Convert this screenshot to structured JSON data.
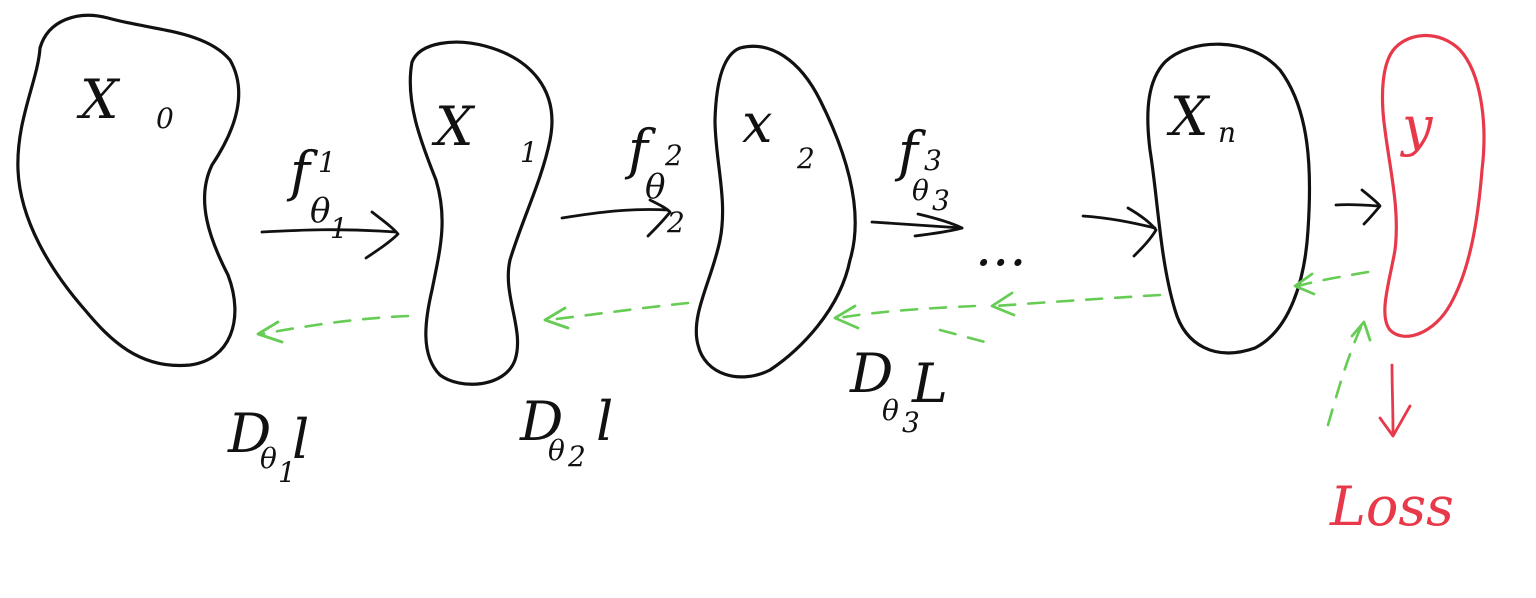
{
  "colors": {
    "ink": "#111111",
    "target": "#e8394a",
    "gradient": "#66cc55"
  },
  "nodes": [
    {
      "id": "x0",
      "main": "X",
      "sub": "0"
    },
    {
      "id": "x1",
      "main": "X",
      "sub": "1"
    },
    {
      "id": "x2",
      "main": "x",
      "sub": "2"
    },
    {
      "id": "xn",
      "main": "X",
      "sub": "n"
    },
    {
      "id": "y",
      "main": "y",
      "sub": ""
    }
  ],
  "forward": [
    {
      "f": "f",
      "f_sub": "1",
      "theta": "θ",
      "theta_sub": "1"
    },
    {
      "f": "f",
      "f_sub": "2",
      "theta": "θ",
      "theta_sub": "2"
    },
    {
      "f": "f",
      "f_sub": "3",
      "theta": "θ",
      "theta_sub": "3"
    }
  ],
  "ellipsis": "...",
  "gradients": [
    {
      "nabla": "D",
      "theta": "θ",
      "theta_sub": "1",
      "l": "l"
    },
    {
      "nabla": "D",
      "theta": "θ",
      "theta_sub": "2",
      "l": "l"
    },
    {
      "nabla": "D",
      "theta": "θ",
      "theta_sub": "3",
      "l": "L"
    }
  ],
  "loss": "Loss"
}
